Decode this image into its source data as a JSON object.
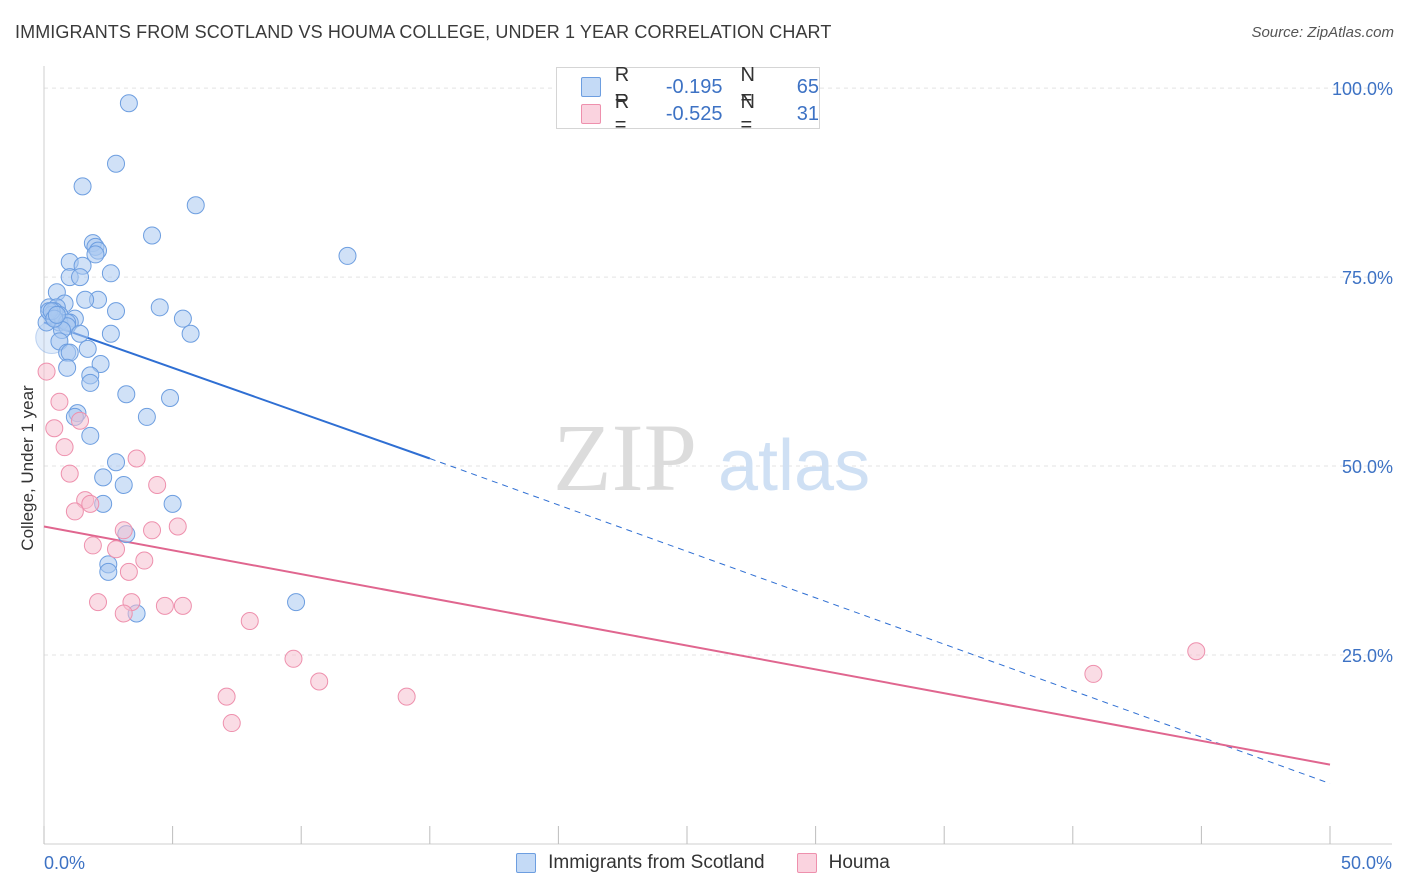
{
  "title": "IMMIGRANTS FROM SCOTLAND VS HOUMA COLLEGE, UNDER 1 YEAR CORRELATION CHART",
  "source": "Source: ZipAtlas.com",
  "watermark": {
    "zip": "ZIP",
    "atlas": "atlas"
  },
  "legend_top": [
    {
      "r_label": "R =",
      "r_value": "-0.195",
      "n_label": "N =",
      "n_value": "65"
    },
    {
      "r_label": "R =",
      "r_value": "-0.525",
      "n_label": "N =",
      "n_value": "31"
    }
  ],
  "colors": {
    "blue_fill": "#a9c8f0",
    "blue_stroke": "#6d9ee0",
    "blue_line": "#2f6fd3",
    "pink_fill": "#f6bfd0",
    "pink_stroke": "#ee90ad",
    "pink_line": "#e0668f",
    "axis_text": "#3d72c4",
    "grid": "#e3e3e3"
  },
  "chart_data": {
    "type": "scatter",
    "title": "IMMIGRANTS FROM SCOTLAND VS HOUMA COLLEGE, UNDER 1 YEAR CORRELATION CHART",
    "xlabel": "",
    "ylabel": "College, Under 1 year",
    "xlim": [
      0,
      50
    ],
    "ylim": [
      0,
      102
    ],
    "x_tick_labels": [
      "0.0%",
      "50.0%"
    ],
    "y_ticks": [
      25,
      50,
      75,
      100
    ],
    "y_tick_labels": [
      "25.0%",
      "50.0%",
      "75.0%",
      "100.0%"
    ],
    "legend_position": "bottom-center",
    "series": [
      {
        "name": "Immigrants from Scotland",
        "color": "blue",
        "trend": {
          "x0": 0,
          "y0": 69.0,
          "x1": 15,
          "y1": 51.0,
          "dashed_to_x": 50,
          "dashed_y": 8.0
        },
        "points": [
          [
            3.3,
            98.0
          ],
          [
            2.8,
            90.0
          ],
          [
            1.5,
            87.0
          ],
          [
            5.9,
            84.5
          ],
          [
            4.2,
            80.5
          ],
          [
            1.9,
            79.5
          ],
          [
            2.0,
            79.0
          ],
          [
            2.1,
            78.5
          ],
          [
            2.0,
            78.0
          ],
          [
            11.8,
            77.8
          ],
          [
            1.0,
            77.0
          ],
          [
            1.5,
            76.5
          ],
          [
            1.0,
            75.0
          ],
          [
            1.4,
            75.0
          ],
          [
            2.6,
            75.5
          ],
          [
            0.5,
            73.0
          ],
          [
            2.1,
            72.0
          ],
          [
            1.6,
            72.0
          ],
          [
            0.8,
            71.5
          ],
          [
            0.2,
            71.0
          ],
          [
            0.5,
            71.0
          ],
          [
            0.4,
            70.5
          ],
          [
            2.8,
            70.5
          ],
          [
            4.5,
            71.0
          ],
          [
            0.3,
            70.0
          ],
          [
            0.6,
            70.0
          ],
          [
            1.2,
            69.5
          ],
          [
            1.0,
            69.0
          ],
          [
            0.6,
            69.0
          ],
          [
            0.9,
            69.0
          ],
          [
            5.4,
            69.5
          ],
          [
            0.9,
            68.5
          ],
          [
            0.7,
            68.0
          ],
          [
            1.4,
            67.5
          ],
          [
            2.6,
            67.5
          ],
          [
            5.7,
            67.5
          ],
          [
            0.6,
            66.5
          ],
          [
            1.7,
            65.5
          ],
          [
            0.9,
            65.0
          ],
          [
            1.0,
            65.0
          ],
          [
            2.2,
            63.5
          ],
          [
            0.9,
            63.0
          ],
          [
            1.8,
            62.0
          ],
          [
            1.8,
            61.0
          ],
          [
            3.2,
            59.5
          ],
          [
            4.9,
            59.0
          ],
          [
            1.3,
            57.0
          ],
          [
            1.2,
            56.5
          ],
          [
            4.0,
            56.5
          ],
          [
            1.8,
            54.0
          ],
          [
            2.8,
            50.5
          ],
          [
            2.3,
            48.5
          ],
          [
            3.1,
            47.5
          ],
          [
            2.3,
            45.0
          ],
          [
            5.0,
            45.0
          ],
          [
            3.2,
            41.0
          ],
          [
            2.5,
            37.0
          ],
          [
            2.5,
            36.0
          ],
          [
            3.6,
            30.5
          ],
          [
            9.8,
            32.0
          ],
          [
            0.1,
            69.0
          ],
          [
            0.2,
            70.5
          ],
          [
            0.3,
            70.5
          ],
          [
            0.4,
            69.5
          ],
          [
            0.5,
            70.0
          ]
        ]
      },
      {
        "name": "Houma",
        "color": "pink",
        "trend": {
          "x0": 0,
          "y0": 42.0,
          "x1": 50,
          "y1": 10.5
        },
        "points": [
          [
            0.1,
            62.5
          ],
          [
            0.6,
            58.5
          ],
          [
            0.4,
            55.0
          ],
          [
            1.4,
            56.0
          ],
          [
            0.8,
            52.5
          ],
          [
            3.6,
            51.0
          ],
          [
            1.0,
            49.0
          ],
          [
            4.4,
            47.5
          ],
          [
            1.6,
            45.5
          ],
          [
            1.8,
            45.0
          ],
          [
            1.2,
            44.0
          ],
          [
            3.1,
            41.5
          ],
          [
            4.2,
            41.5
          ],
          [
            5.2,
            42.0
          ],
          [
            1.9,
            39.5
          ],
          [
            2.8,
            39.0
          ],
          [
            3.9,
            37.5
          ],
          [
            3.3,
            36.0
          ],
          [
            2.1,
            32.0
          ],
          [
            3.4,
            32.0
          ],
          [
            4.7,
            31.5
          ],
          [
            5.4,
            31.5
          ],
          [
            3.1,
            30.5
          ],
          [
            8.0,
            29.5
          ],
          [
            9.7,
            24.5
          ],
          [
            10.7,
            21.5
          ],
          [
            7.1,
            19.5
          ],
          [
            14.1,
            19.5
          ],
          [
            7.3,
            16.0
          ],
          [
            40.8,
            22.5
          ],
          [
            44.8,
            25.5
          ]
        ]
      }
    ]
  }
}
